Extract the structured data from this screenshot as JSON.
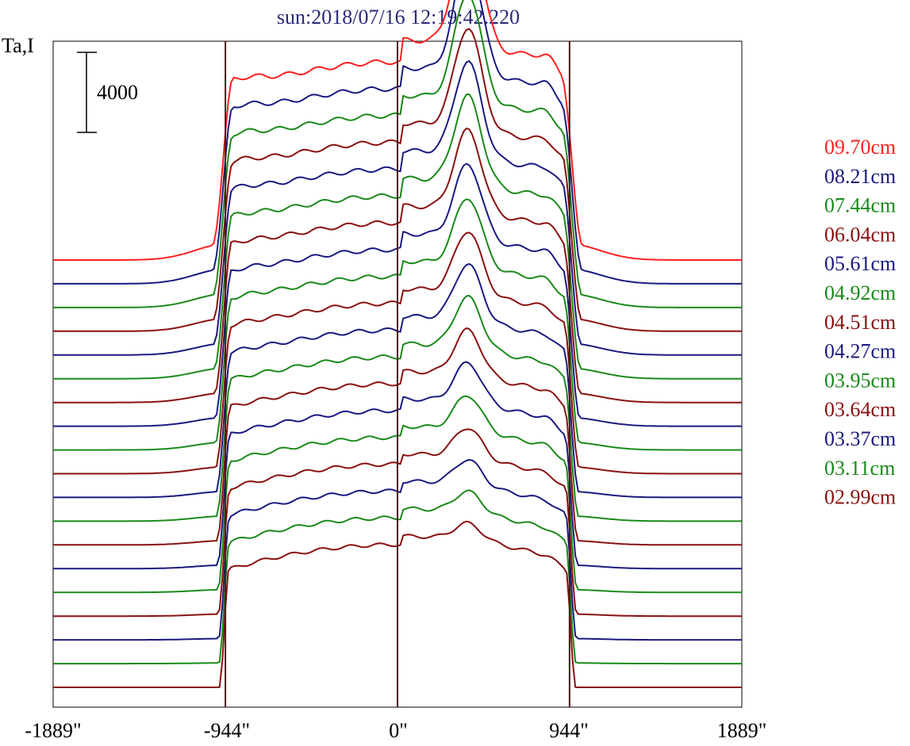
{
  "chart_data": {
    "type": "line",
    "title": "sun:2018/07/16 12:19:42.220",
    "ylabel": "Ta,I",
    "xlabel": "",
    "scale_bar_label": "4000",
    "scale_bar_value": 4000,
    "xlim": [
      -1889,
      1889
    ],
    "x_ticks": [
      -1889,
      -944,
      0,
      944,
      1889
    ],
    "x_tick_labels": [
      "-1889\"",
      "-944\"",
      "0\"",
      "944\"",
      "1889\""
    ],
    "vertical_lines": [
      -944,
      0,
      944
    ],
    "grid": false,
    "legend_position": "right",
    "series_colors": [
      "#ff2020",
      "#1a1a80",
      "#1a8a1a",
      "#8a1010"
    ],
    "series": [
      {
        "name": "09.70cm",
        "color": "#ff2020"
      },
      {
        "name": "08.21cm",
        "color": "#1a1a80"
      },
      {
        "name": "07.44cm",
        "color": "#1a8a1a"
      },
      {
        "name": "06.04cm",
        "color": "#8a1010"
      },
      {
        "name": "05.61cm",
        "color": "#1a1a80"
      },
      {
        "name": "04.92cm",
        "color": "#1a8a1a"
      },
      {
        "name": "04.51cm",
        "color": "#8a1010"
      },
      {
        "name": "04.27cm",
        "color": "#1a1a80"
      },
      {
        "name": "03.95cm",
        "color": "#1a8a1a"
      },
      {
        "name": "03.64cm",
        "color": "#8a1010"
      },
      {
        "name": "03.37cm",
        "color": "#1a1a80"
      },
      {
        "name": "03.11cm",
        "color": "#1a8a1a"
      },
      {
        "name": "02.99cm",
        "color": "#8a1010"
      },
      {
        "name": "",
        "color": "#1a1a80"
      },
      {
        "name": "",
        "color": "#1a8a1a"
      },
      {
        "name": "",
        "color": "#8a1010"
      },
      {
        "name": "",
        "color": "#1a1a80"
      },
      {
        "name": "",
        "color": "#1a8a1a"
      },
      {
        "name": "",
        "color": "#8a1010"
      }
    ]
  }
}
